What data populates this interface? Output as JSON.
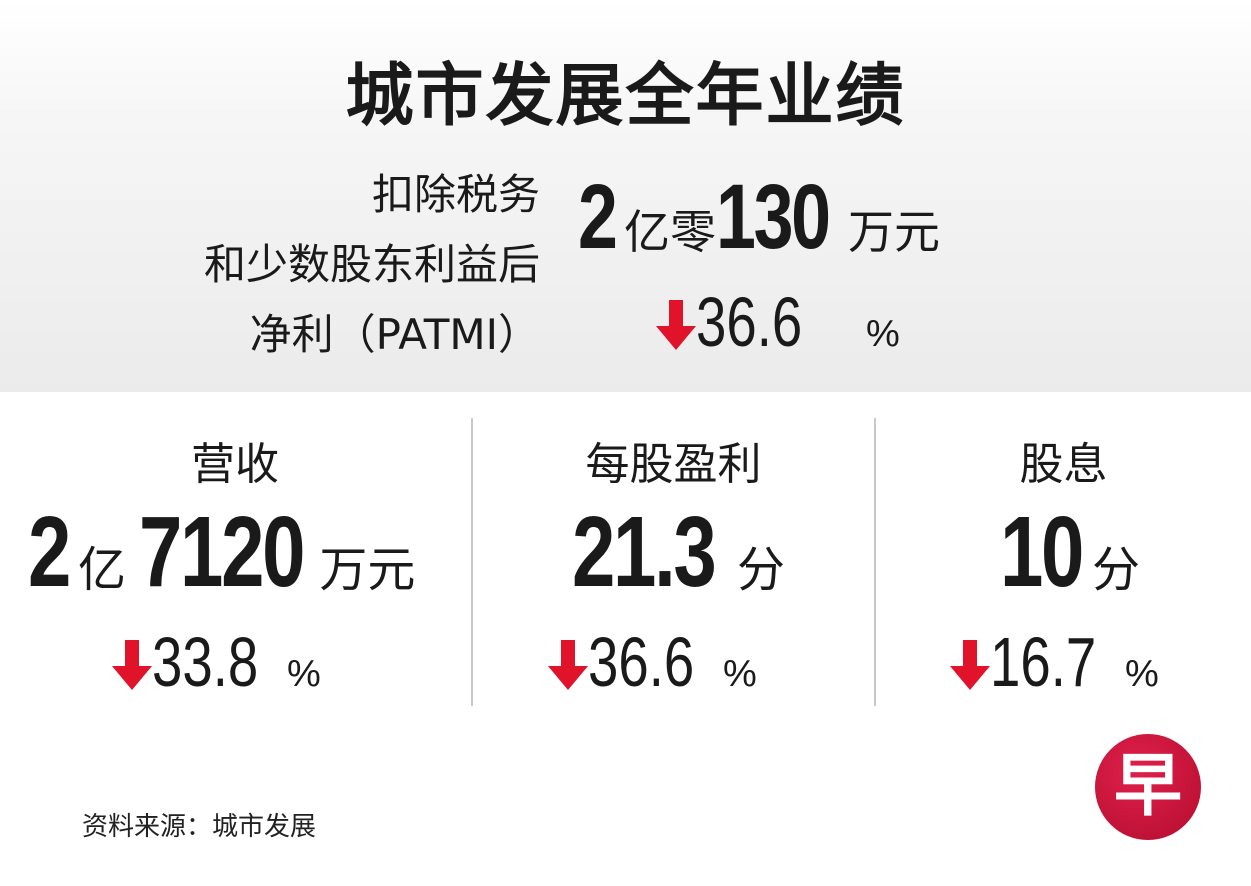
{
  "title": "城市发展全年业绩",
  "patmi": {
    "label_lines": [
      "扣除税务",
      "和少数股东利益后",
      "净利（PATMI）"
    ],
    "value_parts": [
      "2",
      "亿零",
      "130",
      "万元"
    ],
    "change": "36.6",
    "change_unit": "%",
    "direction": "down"
  },
  "metrics": [
    {
      "label": "营收",
      "value_parts": [
        "2",
        "亿 ",
        "7120",
        "万元"
      ],
      "change": "33.8",
      "change_unit": "%",
      "direction": "down"
    },
    {
      "label": "每股盈利",
      "value_parts": [
        "21.3",
        "分"
      ],
      "change": "36.6",
      "change_unit": "%",
      "direction": "down"
    },
    {
      "label": "股息",
      "value_parts": [
        "10",
        "分"
      ],
      "change": "16.7",
      "change_unit": "%",
      "direction": "down"
    }
  ],
  "source": "资料来源：城市发展",
  "logo": {
    "text": "早",
    "color": "#c8102e"
  },
  "colors": {
    "arrow": "#e0132b",
    "text": "#1a1a1a",
    "divider": "#c8c8c8"
  }
}
